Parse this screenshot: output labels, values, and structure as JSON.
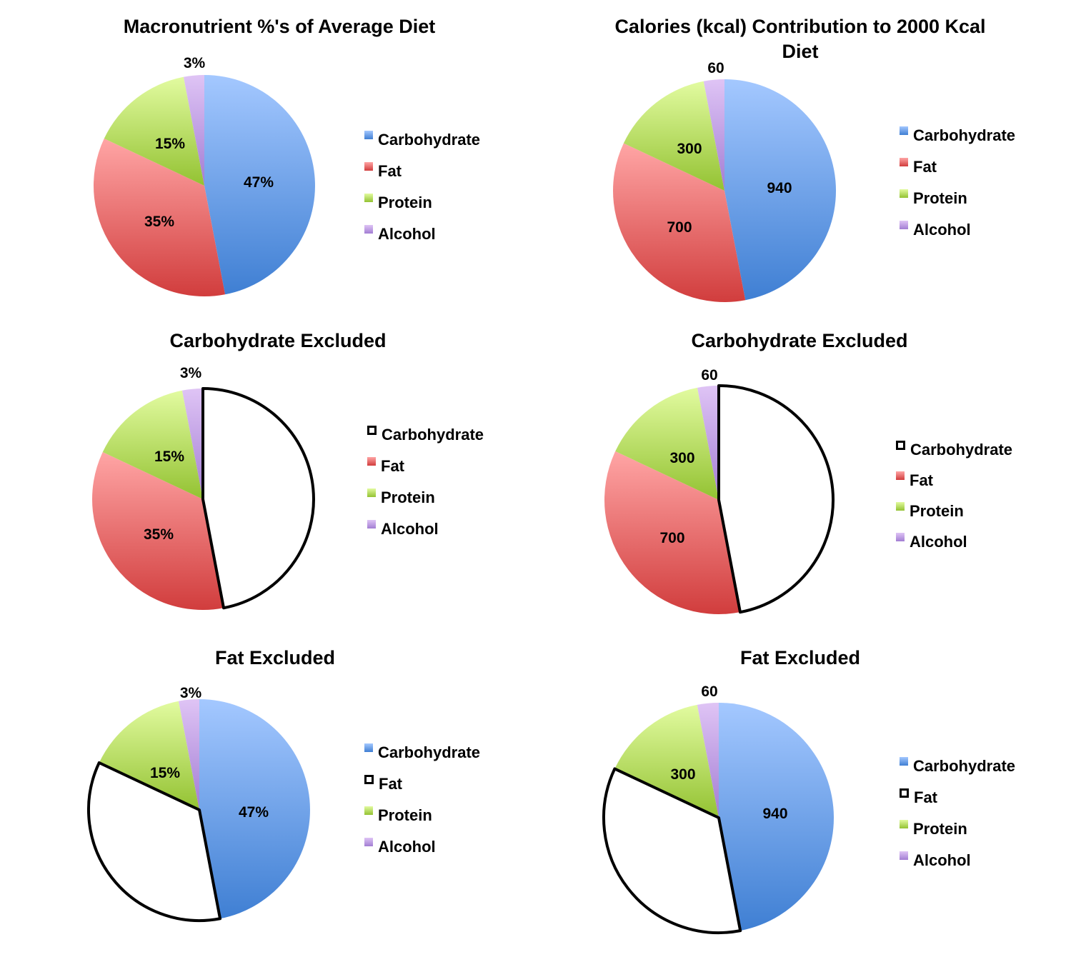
{
  "colors": {
    "Carbohydrate": [
      "#a4c8ff",
      "#3f7fd3"
    ],
    "Fat": [
      "#ffa5a5",
      "#d13d3d"
    ],
    "Protein": [
      "#e2fba0",
      "#93c232"
    ],
    "Alcohol": [
      "#dfc4f5",
      "#a27dd3"
    ],
    "excluded_fill": "#ffffff",
    "excluded_stroke": "#000000"
  },
  "chart_data": [
    {
      "type": "pie",
      "title": "Macronutrient %'s of Average Diet",
      "categories": [
        "Carbohydrate",
        "Fat",
        "Protein",
        "Alcohol"
      ],
      "values": [
        47,
        35,
        15,
        3
      ],
      "data_labels": [
        "47%",
        "35%",
        "15%",
        "3%"
      ],
      "excluded": null,
      "legend": "right"
    },
    {
      "type": "pie",
      "title": "Calories (kcal) Contribution to 2000 Kcal Diet",
      "title_lines": [
        "Calories (kcal) Contribution to 2000 Kcal",
        "Diet"
      ],
      "categories": [
        "Carbohydrate",
        "Fat",
        "Protein",
        "Alcohol"
      ],
      "values": [
        940,
        700,
        300,
        60
      ],
      "data_labels": [
        "940",
        "700",
        "300",
        "60"
      ],
      "excluded": null,
      "legend": "right"
    },
    {
      "type": "pie",
      "title": "Carbohydrate Excluded",
      "categories": [
        "Carbohydrate",
        "Fat",
        "Protein",
        "Alcohol"
      ],
      "values": [
        47,
        35,
        15,
        3
      ],
      "data_labels": [
        "",
        "35%",
        "15%",
        "3%"
      ],
      "excluded": "Carbohydrate",
      "legend": "right"
    },
    {
      "type": "pie",
      "title": "Carbohydrate Excluded",
      "categories": [
        "Carbohydrate",
        "Fat",
        "Protein",
        "Alcohol"
      ],
      "values": [
        940,
        700,
        300,
        60
      ],
      "data_labels": [
        "",
        "700",
        "300",
        "60"
      ],
      "excluded": "Carbohydrate",
      "legend": "right"
    },
    {
      "type": "pie",
      "title": "Fat Excluded",
      "categories": [
        "Carbohydrate",
        "Fat",
        "Protein",
        "Alcohol"
      ],
      "values": [
        47,
        35,
        15,
        3
      ],
      "data_labels": [
        "47%",
        "",
        "15%",
        "3%"
      ],
      "excluded": "Fat",
      "legend": "right"
    },
    {
      "type": "pie",
      "title": "Fat Excluded",
      "categories": [
        "Carbohydrate",
        "Fat",
        "Protein",
        "Alcohol"
      ],
      "values": [
        940,
        700,
        300,
        60
      ],
      "data_labels": [
        "940",
        "",
        "300",
        "60"
      ],
      "excluded": "Fat",
      "legend": "right"
    }
  ]
}
